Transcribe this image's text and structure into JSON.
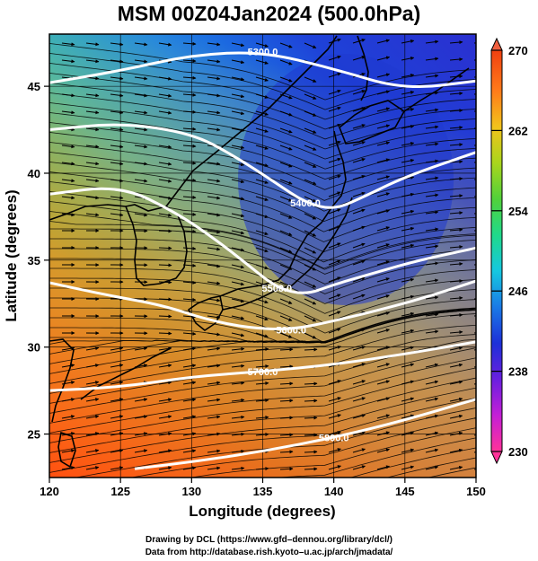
{
  "title": "MSM 00Z04Jan2024 (500.0hPa)",
  "axes": {
    "xlabel": "Longitude (degrees)",
    "ylabel": "Latitude  (degrees)",
    "xlim": [
      120,
      150
    ],
    "ylim": [
      22.5,
      48
    ],
    "xticks": [
      "120",
      "125",
      "130",
      "135",
      "140",
      "145",
      "150"
    ],
    "yticks": [
      "25",
      "30",
      "35",
      "40",
      "45"
    ]
  },
  "colorbar": {
    "range": [
      230,
      270
    ],
    "tick_labels": [
      "270",
      "262",
      "254",
      "246",
      "238",
      "230"
    ],
    "colors": [
      "#ff3399",
      "#c41fd6",
      "#6a1fe0",
      "#1d30d8",
      "#1a7ae6",
      "#16c8e0",
      "#20d98a",
      "#52d13a",
      "#aad51c",
      "#f2c21c",
      "#ff7a1a",
      "#f04010"
    ]
  },
  "contours": [
    {
      "label": "5300.0",
      "lon": [
        120,
        125,
        130,
        135,
        140,
        145,
        150
      ],
      "lat": [
        45.2,
        45.9,
        46.8,
        47.0,
        46.0,
        44.8,
        45.3
      ]
    },
    {
      "label": "5400.0",
      "lon": [
        120,
        125,
        130,
        133,
        136,
        138,
        140,
        142,
        145,
        150
      ],
      "lat": [
        42.5,
        42.9,
        42.3,
        41.0,
        39.4,
        38.3,
        37.9,
        38.6,
        39.8,
        41.2
      ]
    },
    {
      "label": "5500.0",
      "lon": [
        120,
        125,
        129,
        132,
        134,
        136,
        138,
        140,
        143,
        146,
        150
      ],
      "lat": [
        38.8,
        39.3,
        37.7,
        36.0,
        34.7,
        33.4,
        33.0,
        33.6,
        34.3,
        35.0,
        35.7
      ]
    },
    {
      "label": "5600.0",
      "lon": [
        120,
        124,
        128,
        131,
        134,
        137,
        140,
        144,
        147,
        150
      ],
      "lat": [
        33.7,
        33.0,
        32.4,
        31.6,
        31.1,
        31.0,
        31.5,
        32.3,
        33.0,
        33.8
      ]
    },
    {
      "label": "5700.0",
      "lon": [
        120,
        125,
        130,
        135,
        140,
        145,
        150
      ],
      "lat": [
        27.5,
        27.7,
        28.3,
        28.6,
        29.0,
        29.6,
        30.3
      ]
    },
    {
      "label": "5800.0",
      "lon": [
        126,
        130,
        135,
        140,
        145,
        150
      ],
      "lat": [
        23.0,
        23.4,
        24.0,
        24.8,
        25.8,
        27.0
      ]
    }
  ]
}
